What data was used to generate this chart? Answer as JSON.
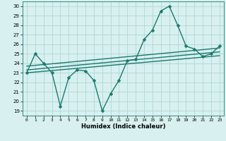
{
  "x": [
    0,
    1,
    2,
    3,
    4,
    5,
    6,
    7,
    8,
    9,
    10,
    11,
    12,
    13,
    14,
    15,
    16,
    17,
    18,
    19,
    20,
    21,
    22,
    23
  ],
  "y_main": [
    23,
    25,
    24,
    23,
    19.5,
    22.5,
    23.3,
    23.2,
    22.2,
    19,
    20.8,
    22.2,
    24.3,
    24.4,
    26.5,
    27.5,
    29.5,
    30,
    28,
    25.8,
    25.5,
    24.7,
    25,
    25.8
  ],
  "trend1_x": [
    0,
    23
  ],
  "trend1_y": [
    23.7,
    25.6
  ],
  "trend2_x": [
    0,
    23
  ],
  "trend2_y": [
    23.3,
    25.2
  ],
  "trend3_x": [
    0,
    23
  ],
  "trend3_y": [
    23.0,
    24.8
  ],
  "x_ticks": [
    0,
    1,
    2,
    3,
    4,
    5,
    6,
    7,
    8,
    9,
    10,
    11,
    12,
    13,
    14,
    15,
    16,
    17,
    18,
    19,
    20,
    21,
    22,
    23
  ],
  "y_ticks": [
    19,
    20,
    21,
    22,
    23,
    24,
    25,
    26,
    27,
    28,
    29,
    30
  ],
  "ylim": [
    18.5,
    30.5
  ],
  "xlim": [
    -0.5,
    23.5
  ],
  "xlabel": "Humidex (Indice chaleur)",
  "line_color": "#1a7a6e",
  "bg_color": "#d8f0f0",
  "grid_color": "#aed8d4",
  "marker_size": 2.5,
  "line_width": 1.0
}
